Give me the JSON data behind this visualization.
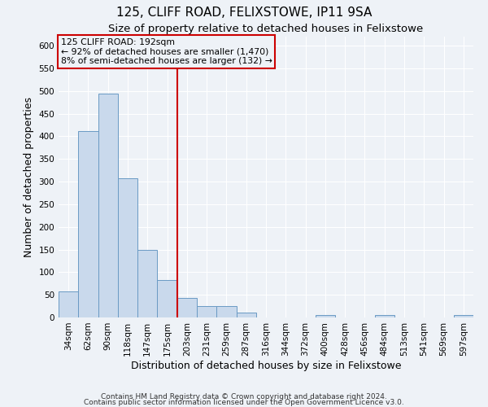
{
  "title": "125, CLIFF ROAD, FELIXSTOWE, IP11 9SA",
  "subtitle": "Size of property relative to detached houses in Felixstowe",
  "xlabel": "Distribution of detached houses by size in Felixstowe",
  "ylabel": "Number of detached properties",
  "bar_labels": [
    "34sqm",
    "62sqm",
    "90sqm",
    "118sqm",
    "147sqm",
    "175sqm",
    "203sqm",
    "231sqm",
    "259sqm",
    "287sqm",
    "316sqm",
    "344sqm",
    "372sqm",
    "400sqm",
    "428sqm",
    "456sqm",
    "484sqm",
    "513sqm",
    "541sqm",
    "569sqm",
    "597sqm"
  ],
  "bar_values": [
    57,
    411,
    494,
    307,
    150,
    83,
    43,
    25,
    25,
    10,
    0,
    0,
    0,
    5,
    0,
    0,
    5,
    0,
    0,
    0,
    5
  ],
  "bar_color": "#c9d9ec",
  "bar_edge_color": "#6a9ac4",
  "vline_color": "#cc0000",
  "annotation_line1": "125 CLIFF ROAD: 192sqm",
  "annotation_line2": "← 92% of detached houses are smaller (1,470)",
  "annotation_line3": "8% of semi-detached houses are larger (132) →",
  "annotation_box_color": "#cc0000",
  "ylim": [
    0,
    620
  ],
  "yticks": [
    0,
    50,
    100,
    150,
    200,
    250,
    300,
    350,
    400,
    450,
    500,
    550,
    600
  ],
  "footer_line1": "Contains HM Land Registry data © Crown copyright and database right 2024.",
  "footer_line2": "Contains public sector information licensed under the Open Government Licence v3.0.",
  "background_color": "#eef2f7",
  "grid_color": "#ffffff",
  "title_fontsize": 11,
  "subtitle_fontsize": 9.5,
  "axis_label_fontsize": 9,
  "tick_fontsize": 7.5,
  "footer_fontsize": 6.5
}
